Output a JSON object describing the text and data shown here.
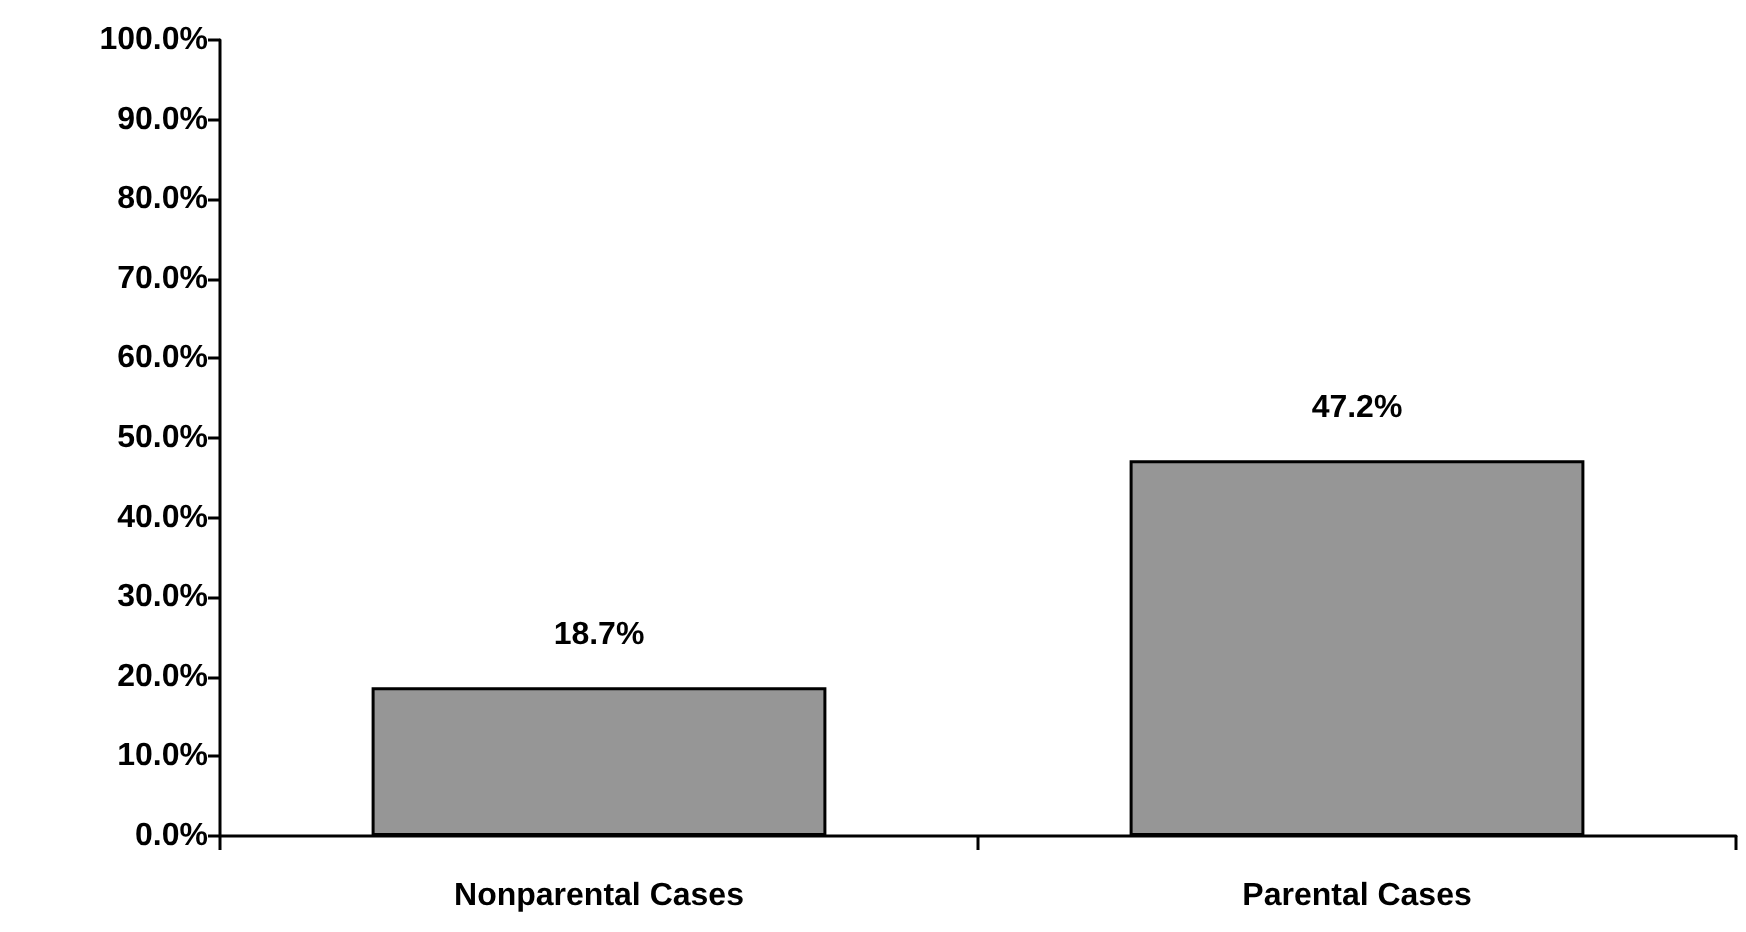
{
  "chart_data": {
    "type": "bar",
    "categories": [
      "Nonparental Cases",
      "Parental Cases"
    ],
    "values": [
      18.7,
      47.2
    ],
    "value_labels": [
      "18.7%",
      "47.2%"
    ],
    "color": "#969696",
    "ylim": [
      0,
      100
    ],
    "yticks": [
      {
        "value": 0,
        "label": "0.0%"
      },
      {
        "value": 10,
        "label": "10.0%"
      },
      {
        "value": 20,
        "label": "20.0%"
      },
      {
        "value": 30,
        "label": "30.0%"
      },
      {
        "value": 40,
        "label": "40.0%"
      },
      {
        "value": 50,
        "label": "50.0%"
      },
      {
        "value": 60,
        "label": "60.0%"
      },
      {
        "value": 70,
        "label": "70.0%"
      },
      {
        "value": 80,
        "label": "80.0%"
      },
      {
        "value": 90,
        "label": "90.0%"
      },
      {
        "value": 100,
        "label": "100.0%"
      }
    ],
    "grid": false
  }
}
